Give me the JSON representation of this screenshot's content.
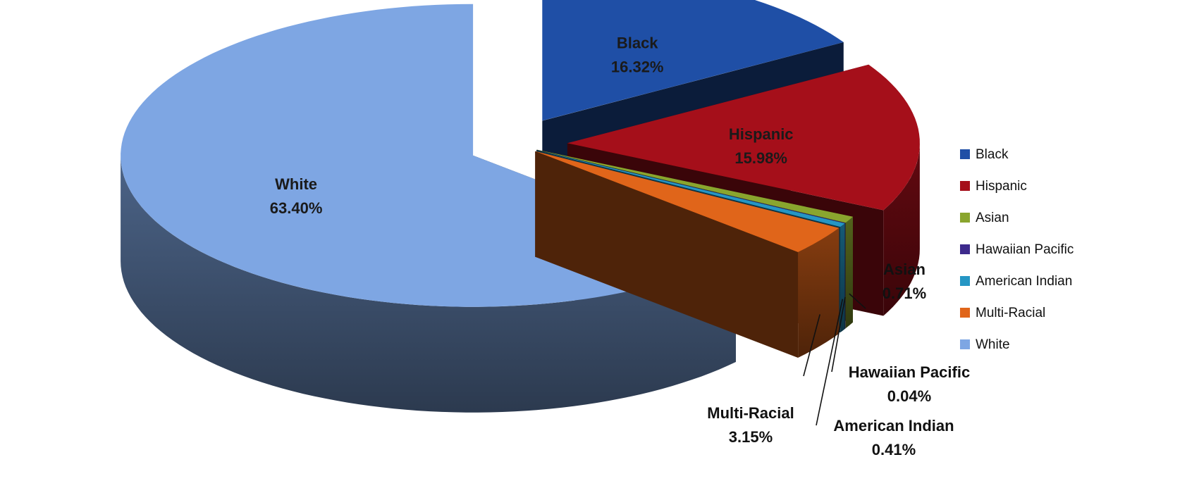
{
  "chart_data": {
    "type": "pie",
    "title": "",
    "categories": [
      "Black",
      "Hispanic",
      "Asian",
      "Hawaiian Pacific",
      "American Indian",
      "Multi-Racial",
      "White"
    ],
    "values": [
      16.32,
      15.98,
      0.71,
      0.04,
      0.41,
      3.15,
      63.4
    ],
    "value_labels": [
      "16.32%",
      "15.98%",
      "0.71%",
      "0.04%",
      "0.41%",
      "3.15%",
      "63.40%"
    ],
    "colors": [
      "#1f4fa6",
      "#a50f1a",
      "#8aa52e",
      "#3d2a8c",
      "#2596c4",
      "#e0651a",
      "#7ea6e3"
    ],
    "exploded": true,
    "three_d": true,
    "legend": {
      "position": "right",
      "entries": [
        "Black",
        "Hispanic",
        "Asian",
        "Hawaiian Pacific",
        "American Indian",
        "Multi-Racial",
        "White"
      ]
    }
  }
}
